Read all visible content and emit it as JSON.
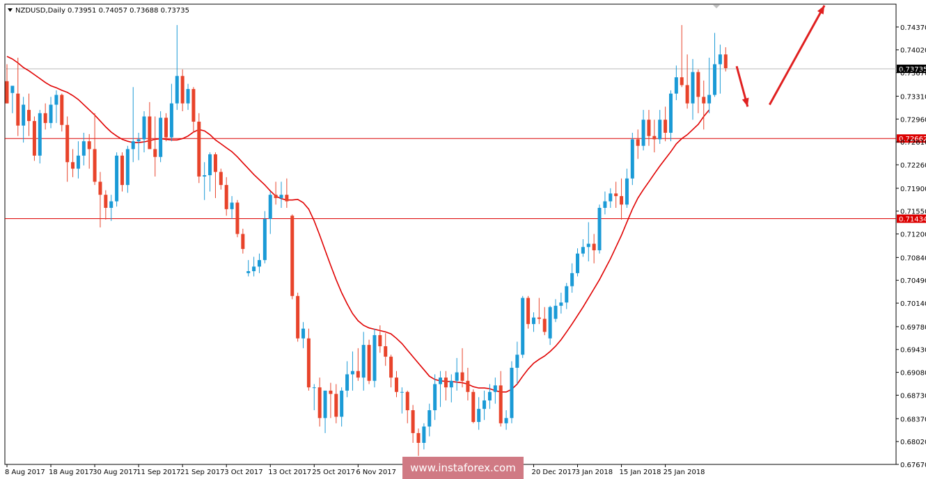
{
  "chart_data": {
    "type": "candlestick",
    "title": "NZDUSD,Daily  0.73951 0.74057 0.73688 0.73735",
    "ylim": [
      0.6767,
      0.7472
    ],
    "y_ticks": [
      "0.74370",
      "0.74020",
      "0.73670",
      "0.73310",
      "0.72960",
      "0.72610",
      "0.72260",
      "0.71900",
      "0.71550",
      "0.71200",
      "0.70840",
      "0.70490",
      "0.70140",
      "0.69780",
      "0.69430",
      "0.69080",
      "0.68730",
      "0.68370",
      "0.68020",
      "0.67670"
    ],
    "x_labels": [
      {
        "label": "8 Aug 2017",
        "index": 0
      },
      {
        "label": "18 Aug 2017",
        "index": 8
      },
      {
        "label": "30 Aug 2017",
        "index": 16
      },
      {
        "label": "11 Sep 2017",
        "index": 24
      },
      {
        "label": "21 Sep 2017",
        "index": 32
      },
      {
        "label": "3 Oct 2017",
        "index": 40
      },
      {
        "label": "13 Oct 2017",
        "index": 48
      },
      {
        "label": "25 Oct 2017",
        "index": 56
      },
      {
        "label": "6 Nov 2017",
        "index": 64
      },
      {
        "label": "2017",
        "index": 88
      },
      {
        "label": "20 Dec 2017",
        "index": 96
      },
      {
        "label": "3 Jan 2018",
        "index": 104
      },
      {
        "label": "15 Jan 2018",
        "index": 112
      },
      {
        "label": "25 Jan 2018",
        "index": 120
      }
    ],
    "candles": [
      {
        "o": 0.7354,
        "h": 0.738,
        "l": 0.732,
        "c": 0.732
      },
      {
        "o": 0.7336,
        "h": 0.7345,
        "l": 0.7305,
        "c": 0.7347
      },
      {
        "o": 0.7335,
        "h": 0.739,
        "l": 0.727,
        "c": 0.7286
      },
      {
        "o": 0.7286,
        "h": 0.733,
        "l": 0.726,
        "c": 0.7318
      },
      {
        "o": 0.731,
        "h": 0.7335,
        "l": 0.727,
        "c": 0.7293
      },
      {
        "o": 0.7293,
        "h": 0.73,
        "l": 0.7232,
        "c": 0.724
      },
      {
        "o": 0.724,
        "h": 0.731,
        "l": 0.7228,
        "c": 0.7305
      },
      {
        "o": 0.7305,
        "h": 0.732,
        "l": 0.728,
        "c": 0.729
      },
      {
        "o": 0.729,
        "h": 0.733,
        "l": 0.7282,
        "c": 0.7318
      },
      {
        "o": 0.7318,
        "h": 0.734,
        "l": 0.729,
        "c": 0.7333
      },
      {
        "o": 0.7333,
        "h": 0.7335,
        "l": 0.7277,
        "c": 0.7287
      },
      {
        "o": 0.7287,
        "h": 0.73,
        "l": 0.72,
        "c": 0.723
      },
      {
        "o": 0.723,
        "h": 0.725,
        "l": 0.7207,
        "c": 0.722
      },
      {
        "o": 0.722,
        "h": 0.7262,
        "l": 0.7205,
        "c": 0.724
      },
      {
        "o": 0.724,
        "h": 0.7275,
        "l": 0.7225,
        "c": 0.7262
      },
      {
        "o": 0.7262,
        "h": 0.7273,
        "l": 0.722,
        "c": 0.725
      },
      {
        "o": 0.725,
        "h": 0.7305,
        "l": 0.7195,
        "c": 0.72
      },
      {
        "o": 0.72,
        "h": 0.7215,
        "l": 0.713,
        "c": 0.718
      },
      {
        "o": 0.718,
        "h": 0.7187,
        "l": 0.7142,
        "c": 0.716
      },
      {
        "o": 0.716,
        "h": 0.718,
        "l": 0.714,
        "c": 0.717
      },
      {
        "o": 0.717,
        "h": 0.7245,
        "l": 0.7162,
        "c": 0.724
      },
      {
        "o": 0.724,
        "h": 0.7245,
        "l": 0.7185,
        "c": 0.7195
      },
      {
        "o": 0.7195,
        "h": 0.7255,
        "l": 0.7183,
        "c": 0.725
      },
      {
        "o": 0.725,
        "h": 0.7345,
        "l": 0.723,
        "c": 0.7262
      },
      {
        "o": 0.7262,
        "h": 0.7275,
        "l": 0.7233,
        "c": 0.7265
      },
      {
        "o": 0.7265,
        "h": 0.7308,
        "l": 0.7245,
        "c": 0.73
      },
      {
        "o": 0.73,
        "h": 0.7322,
        "l": 0.7255,
        "c": 0.725
      },
      {
        "o": 0.725,
        "h": 0.73,
        "l": 0.7208,
        "c": 0.7238
      },
      {
        "o": 0.7238,
        "h": 0.7308,
        "l": 0.723,
        "c": 0.7298
      },
      {
        "o": 0.7298,
        "h": 0.7305,
        "l": 0.7262,
        "c": 0.7268
      },
      {
        "o": 0.7268,
        "h": 0.735,
        "l": 0.7262,
        "c": 0.732
      },
      {
        "o": 0.732,
        "h": 0.744,
        "l": 0.731,
        "c": 0.7362
      },
      {
        "o": 0.7362,
        "h": 0.7372,
        "l": 0.7308,
        "c": 0.732
      },
      {
        "o": 0.732,
        "h": 0.735,
        "l": 0.731,
        "c": 0.7342
      },
      {
        "o": 0.7342,
        "h": 0.7345,
        "l": 0.7275,
        "c": 0.7292
      },
      {
        "o": 0.7292,
        "h": 0.7305,
        "l": 0.7198,
        "c": 0.7208
      },
      {
        "o": 0.7208,
        "h": 0.723,
        "l": 0.7172,
        "c": 0.721
      },
      {
        "o": 0.721,
        "h": 0.7245,
        "l": 0.7185,
        "c": 0.7242
      },
      {
        "o": 0.7242,
        "h": 0.7245,
        "l": 0.7175,
        "c": 0.7215
      },
      {
        "o": 0.7215,
        "h": 0.722,
        "l": 0.7188,
        "c": 0.7195
      },
      {
        "o": 0.7195,
        "h": 0.7207,
        "l": 0.7148,
        "c": 0.7158
      },
      {
        "o": 0.7158,
        "h": 0.7178,
        "l": 0.7143,
        "c": 0.7168
      },
      {
        "o": 0.7168,
        "h": 0.7172,
        "l": 0.7115,
        "c": 0.712
      },
      {
        "o": 0.712,
        "h": 0.7128,
        "l": 0.709,
        "c": 0.7097
      },
      {
        "o": 0.706,
        "h": 0.708,
        "l": 0.7055,
        "c": 0.7063
      },
      {
        "o": 0.7063,
        "h": 0.7085,
        "l": 0.7055,
        "c": 0.707
      },
      {
        "o": 0.707,
        "h": 0.709,
        "l": 0.706,
        "c": 0.708
      },
      {
        "o": 0.708,
        "h": 0.7155,
        "l": 0.7075,
        "c": 0.7143
      },
      {
        "o": 0.7143,
        "h": 0.7185,
        "l": 0.712,
        "c": 0.718
      },
      {
        "o": 0.718,
        "h": 0.72,
        "l": 0.7165,
        "c": 0.7175
      },
      {
        "o": 0.7175,
        "h": 0.72,
        "l": 0.716,
        "c": 0.718
      },
      {
        "o": 0.718,
        "h": 0.7205,
        "l": 0.716,
        "c": 0.717
      },
      {
        "o": 0.7148,
        "h": 0.715,
        "l": 0.702,
        "c": 0.7025
      },
      {
        "o": 0.7025,
        "h": 0.703,
        "l": 0.6955,
        "c": 0.696
      },
      {
        "o": 0.696,
        "h": 0.6985,
        "l": 0.6945,
        "c": 0.6975
      },
      {
        "o": 0.696,
        "h": 0.6975,
        "l": 0.688,
        "c": 0.6885
      },
      {
        "o": 0.6885,
        "h": 0.689,
        "l": 0.685,
        "c": 0.6885
      },
      {
        "o": 0.6885,
        "h": 0.69,
        "l": 0.6825,
        "c": 0.6838
      },
      {
        "o": 0.6838,
        "h": 0.688,
        "l": 0.6815,
        "c": 0.688
      },
      {
        "o": 0.688,
        "h": 0.6892,
        "l": 0.6838,
        "c": 0.6875
      },
      {
        "o": 0.6875,
        "h": 0.689,
        "l": 0.683,
        "c": 0.684
      },
      {
        "o": 0.684,
        "h": 0.6885,
        "l": 0.6825,
        "c": 0.688
      },
      {
        "o": 0.688,
        "h": 0.6925,
        "l": 0.687,
        "c": 0.6905
      },
      {
        "o": 0.6905,
        "h": 0.694,
        "l": 0.688,
        "c": 0.691
      },
      {
        "o": 0.691,
        "h": 0.6945,
        "l": 0.6895,
        "c": 0.69
      },
      {
        "o": 0.69,
        "h": 0.697,
        "l": 0.688,
        "c": 0.695
      },
      {
        "o": 0.695,
        "h": 0.6958,
        "l": 0.689,
        "c": 0.6895
      },
      {
        "o": 0.6895,
        "h": 0.6975,
        "l": 0.6885,
        "c": 0.6965
      },
      {
        "o": 0.6965,
        "h": 0.698,
        "l": 0.6938,
        "c": 0.6948
      },
      {
        "o": 0.6948,
        "h": 0.6968,
        "l": 0.6918,
        "c": 0.6932
      },
      {
        "o": 0.6932,
        "h": 0.6935,
        "l": 0.6885,
        "c": 0.69
      },
      {
        "o": 0.69,
        "h": 0.691,
        "l": 0.687,
        "c": 0.6878
      },
      {
        "o": 0.6878,
        "h": 0.6885,
        "l": 0.6845,
        "c": 0.6878
      },
      {
        "o": 0.6878,
        "h": 0.688,
        "l": 0.683,
        "c": 0.685
      },
      {
        "o": 0.685,
        "h": 0.6858,
        "l": 0.68,
        "c": 0.6815
      },
      {
        "o": 0.6815,
        "h": 0.6822,
        "l": 0.678,
        "c": 0.68
      },
      {
        "o": 0.68,
        "h": 0.683,
        "l": 0.679,
        "c": 0.6825
      },
      {
        "o": 0.6825,
        "h": 0.686,
        "l": 0.681,
        "c": 0.685
      },
      {
        "o": 0.685,
        "h": 0.6905,
        "l": 0.6835,
        "c": 0.689
      },
      {
        "o": 0.689,
        "h": 0.691,
        "l": 0.6855,
        "c": 0.69
      },
      {
        "o": 0.69,
        "h": 0.691,
        "l": 0.6865,
        "c": 0.6885
      },
      {
        "o": 0.6885,
        "h": 0.6905,
        "l": 0.6862,
        "c": 0.6895
      },
      {
        "o": 0.6895,
        "h": 0.693,
        "l": 0.688,
        "c": 0.6908
      },
      {
        "o": 0.6908,
        "h": 0.6945,
        "l": 0.6885,
        "c": 0.6895
      },
      {
        "o": 0.6895,
        "h": 0.6915,
        "l": 0.6865,
        "c": 0.6878
      },
      {
        "o": 0.6878,
        "h": 0.6882,
        "l": 0.683,
        "c": 0.6832
      },
      {
        "o": 0.6832,
        "h": 0.687,
        "l": 0.682,
        "c": 0.6852
      },
      {
        "o": 0.6852,
        "h": 0.688,
        "l": 0.6835,
        "c": 0.6865
      },
      {
        "o": 0.6865,
        "h": 0.689,
        "l": 0.6852,
        "c": 0.6878
      },
      {
        "o": 0.6878,
        "h": 0.69,
        "l": 0.686,
        "c": 0.6888
      },
      {
        "o": 0.6888,
        "h": 0.691,
        "l": 0.6825,
        "c": 0.683
      },
      {
        "o": 0.683,
        "h": 0.685,
        "l": 0.682,
        "c": 0.6838
      },
      {
        "o": 0.6838,
        "h": 0.6925,
        "l": 0.683,
        "c": 0.6915
      },
      {
        "o": 0.6915,
        "h": 0.6955,
        "l": 0.689,
        "c": 0.6935
      },
      {
        "o": 0.6935,
        "h": 0.7025,
        "l": 0.693,
        "c": 0.7022
      },
      {
        "o": 0.7022,
        "h": 0.7025,
        "l": 0.6975,
        "c": 0.6982
      },
      {
        "o": 0.6982,
        "h": 0.7,
        "l": 0.697,
        "c": 0.6992
      },
      {
        "o": 0.6992,
        "h": 0.7022,
        "l": 0.6982,
        "c": 0.699
      },
      {
        "o": 0.699,
        "h": 0.7008,
        "l": 0.6965,
        "c": 0.697
      },
      {
        "o": 0.696,
        "h": 0.701,
        "l": 0.695,
        "c": 0.7008
      },
      {
        "o": 0.699,
        "h": 0.702,
        "l": 0.6985,
        "c": 0.701
      },
      {
        "o": 0.701,
        "h": 0.703,
        "l": 0.6998,
        "c": 0.7015
      },
      {
        "o": 0.7015,
        "h": 0.7045,
        "l": 0.7005,
        "c": 0.704
      },
      {
        "o": 0.704,
        "h": 0.7075,
        "l": 0.703,
        "c": 0.706
      },
      {
        "o": 0.706,
        "h": 0.7098,
        "l": 0.7055,
        "c": 0.709
      },
      {
        "o": 0.709,
        "h": 0.7112,
        "l": 0.7085,
        "c": 0.71
      },
      {
        "o": 0.71,
        "h": 0.7138,
        "l": 0.7078,
        "c": 0.7105
      },
      {
        "o": 0.7105,
        "h": 0.712,
        "l": 0.7075,
        "c": 0.7095
      },
      {
        "o": 0.7095,
        "h": 0.7165,
        "l": 0.709,
        "c": 0.716
      },
      {
        "o": 0.716,
        "h": 0.7185,
        "l": 0.715,
        "c": 0.717
      },
      {
        "o": 0.717,
        "h": 0.719,
        "l": 0.716,
        "c": 0.7182
      },
      {
        "o": 0.7182,
        "h": 0.72,
        "l": 0.716,
        "c": 0.7178
      },
      {
        "o": 0.7178,
        "h": 0.7205,
        "l": 0.7142,
        "c": 0.7165
      },
      {
        "o": 0.7165,
        "h": 0.722,
        "l": 0.716,
        "c": 0.7205
      },
      {
        "o": 0.7205,
        "h": 0.7275,
        "l": 0.7195,
        "c": 0.7265
      },
      {
        "o": 0.7265,
        "h": 0.728,
        "l": 0.7235,
        "c": 0.7255
      },
      {
        "o": 0.7255,
        "h": 0.731,
        "l": 0.7248,
        "c": 0.7295
      },
      {
        "o": 0.7295,
        "h": 0.731,
        "l": 0.7255,
        "c": 0.727
      },
      {
        "o": 0.727,
        "h": 0.7295,
        "l": 0.7245,
        "c": 0.7265
      },
      {
        "o": 0.7265,
        "h": 0.731,
        "l": 0.7258,
        "c": 0.7295
      },
      {
        "o": 0.7295,
        "h": 0.7315,
        "l": 0.7262,
        "c": 0.7275
      },
      {
        "o": 0.7275,
        "h": 0.734,
        "l": 0.7262,
        "c": 0.7335
      },
      {
        "o": 0.7335,
        "h": 0.7378,
        "l": 0.7325,
        "c": 0.736
      },
      {
        "o": 0.736,
        "h": 0.744,
        "l": 0.7345,
        "c": 0.7348
      },
      {
        "o": 0.7348,
        "h": 0.7395,
        "l": 0.7312,
        "c": 0.732
      },
      {
        "o": 0.732,
        "h": 0.7388,
        "l": 0.7295,
        "c": 0.7368
      },
      {
        "o": 0.7368,
        "h": 0.7372,
        "l": 0.7305,
        "c": 0.733
      },
      {
        "o": 0.733,
        "h": 0.7355,
        "l": 0.728,
        "c": 0.732
      },
      {
        "o": 0.732,
        "h": 0.739,
        "l": 0.7305,
        "c": 0.7333
      },
      {
        "o": 0.7333,
        "h": 0.7428,
        "l": 0.733,
        "c": 0.738
      },
      {
        "o": 0.738,
        "h": 0.741,
        "l": 0.7335,
        "c": 0.7395
      },
      {
        "o": 0.7395,
        "h": 0.7406,
        "l": 0.7369,
        "c": 0.7374
      }
    ],
    "moving_average": {
      "start_index": 0,
      "values": [
        0.7392,
        0.7388,
        0.7382,
        0.7375,
        0.737,
        0.7364,
        0.7358,
        0.7352,
        0.7347,
        0.7344,
        0.734,
        0.7337,
        0.7332,
        0.7326,
        0.7318,
        0.731,
        0.7302,
        0.7293,
        0.7284,
        0.7276,
        0.727,
        0.7265,
        0.7262,
        0.726,
        0.726,
        0.7261,
        0.7263,
        0.7265,
        0.7266,
        0.7265,
        0.7264,
        0.7264,
        0.7266,
        0.727,
        0.7276,
        0.728,
        0.7278,
        0.7272,
        0.7264,
        0.7258,
        0.7252,
        0.7246,
        0.7238,
        0.7229,
        0.722,
        0.7211,
        0.7203,
        0.7195,
        0.7186,
        0.7178,
        0.7174,
        0.7172,
        0.7172,
        0.7173,
        0.7168,
        0.7158,
        0.714,
        0.7118,
        0.7095,
        0.7072,
        0.705,
        0.703,
        0.7013,
        0.6998,
        0.6987,
        0.698,
        0.6976,
        0.6974,
        0.6972,
        0.697,
        0.6967,
        0.696,
        0.6952,
        0.6942,
        0.6932,
        0.6922,
        0.6912,
        0.6902,
        0.6897,
        0.6895,
        0.6894,
        0.6894,
        0.6893,
        0.6892,
        0.689,
        0.6886,
        0.6884,
        0.6884,
        0.6883,
        0.688,
        0.6878,
        0.6878,
        0.6882,
        0.689,
        0.6902,
        0.6913,
        0.6922,
        0.6928,
        0.6933,
        0.694,
        0.6948,
        0.6958,
        0.697,
        0.6982,
        0.6995,
        0.7008,
        0.7022,
        0.7036,
        0.705,
        0.7066,
        0.7082,
        0.71,
        0.7118,
        0.7138,
        0.7158,
        0.7175,
        0.7188,
        0.72,
        0.7212,
        0.7224,
        0.7235,
        0.7246,
        0.7258,
        0.7266,
        0.7272,
        0.728,
        0.7288,
        0.73,
        0.731
      ]
    },
    "horizontal_lines": [
      {
        "value": 0.7373,
        "label": "0.73735",
        "color": "#b8b8b8"
      },
      {
        "value": 0.72662,
        "label": "0.72662",
        "color": "#dc0000"
      },
      {
        "value": 0.71434,
        "label": "0.71434",
        "color": "#dc0000"
      }
    ],
    "arrows": [
      {
        "from": [
          133,
          0.7377
        ],
        "to": [
          135,
          0.7315
        ],
        "color": "#e02020"
      },
      {
        "from": [
          139,
          0.7318
        ],
        "to": [
          149,
          0.747
        ],
        "color": "#e02020"
      }
    ],
    "colors": {
      "bull": "#1a9ad6",
      "bear": "#e8432a",
      "ma": "#e00000",
      "grid": "#000000"
    }
  },
  "watermark": "www.instaforex.com"
}
